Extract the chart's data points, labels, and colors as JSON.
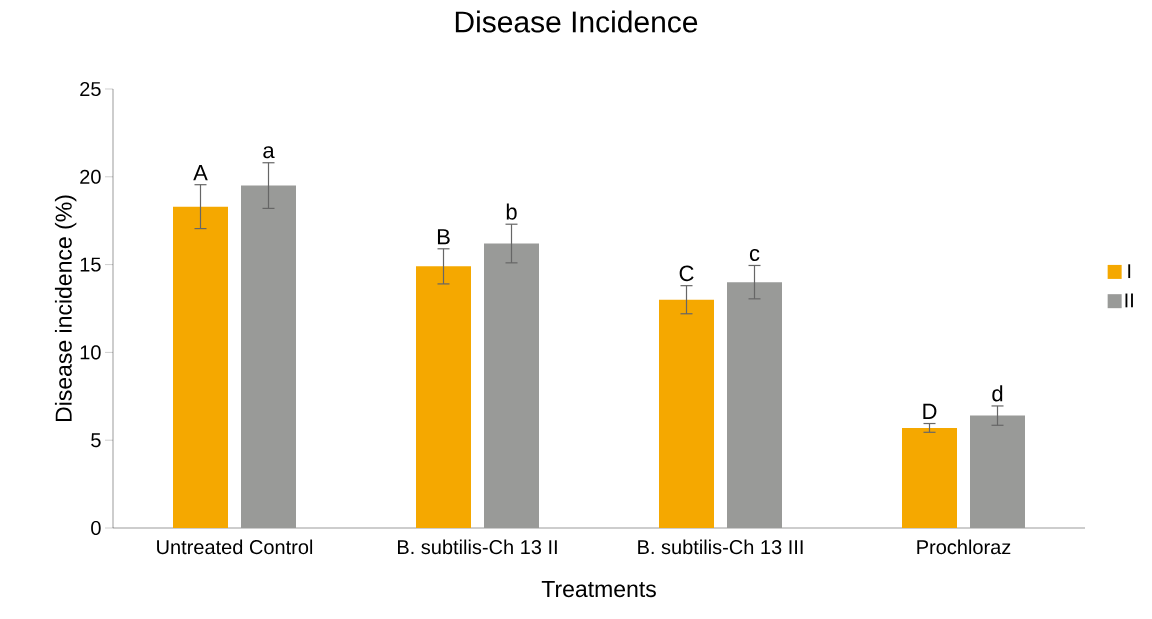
{
  "chart_data": {
    "type": "bar",
    "title": "Disease Incidence",
    "xlabel": "Treatments",
    "ylabel": "Disease incidence (%)",
    "categories": [
      "Untreated Control",
      "B. subtilis-Ch 13 II",
      "B. subtilis-Ch 13 III",
      "Prochloraz"
    ],
    "series": [
      {
        "name": "I",
        "color": "#f5a800",
        "values": [
          18.3,
          14.9,
          13.0,
          5.7
        ],
        "errors": [
          1.25,
          1.0,
          0.8,
          0.25
        ]
      },
      {
        "name": "II",
        "color": "#999a98",
        "values": [
          19.5,
          16.2,
          14.0,
          6.4
        ],
        "errors": [
          1.3,
          1.1,
          0.95,
          0.55
        ]
      }
    ],
    "ylim": [
      0,
      25
    ],
    "yticks": [
      0,
      5,
      10,
      15,
      20,
      25
    ],
    "grid": false,
    "legend": "right",
    "annotations": [
      "A",
      "a",
      "B",
      "b",
      "C",
      "c",
      "D",
      "d"
    ]
  }
}
